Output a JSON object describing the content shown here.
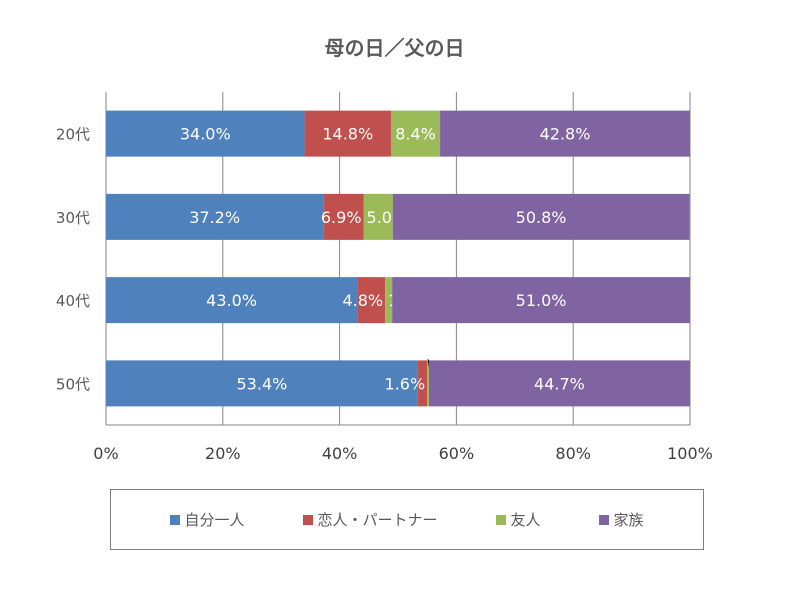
{
  "chart_data": {
    "type": "bar",
    "orientation": "horizontal",
    "stacked": "percent",
    "title": "母の日／父の日",
    "categories": [
      "20代",
      "30代",
      "40代",
      "50代"
    ],
    "series": [
      {
        "name": "自分一人",
        "color": "#4f81bd",
        "values": [
          34.0,
          37.2,
          43.0,
          53.4
        ]
      },
      {
        "name": "恋人・パートナー",
        "color": "#c0504d",
        "values": [
          14.8,
          6.9,
          4.8,
          1.6
        ]
      },
      {
        "name": "友人",
        "color": "#9bbb59",
        "values": [
          8.4,
          5.0,
          1.2,
          0.3
        ]
      },
      {
        "name": "家族",
        "color": "#8064a2",
        "values": [
          42.8,
          50.8,
          51.0,
          44.7
        ]
      }
    ],
    "xlim": [
      0,
      100
    ],
    "x_ticks": [
      "0%",
      "20%",
      "40%",
      "60%",
      "80%",
      "100%"
    ],
    "grid": true,
    "legend_position": "bottom"
  }
}
